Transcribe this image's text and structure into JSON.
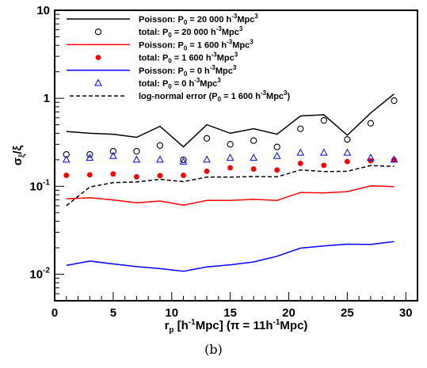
{
  "caption": "(b)",
  "chart_data": {
    "type": "line",
    "xlabel": "r_p [h^-1Mpc] (π = 11h^-1Mpc)",
    "ylabel": "σ_ξ/ξ",
    "xlim": [
      0,
      31
    ],
    "ylim": [
      0.005,
      10
    ],
    "yscale": "log",
    "x_ticks": [
      0,
      5,
      10,
      15,
      20,
      25,
      30
    ],
    "y_ticks": [
      {
        "value": 0.01,
        "base": "10",
        "exp": "-2"
      },
      {
        "value": 0.1,
        "base": "10",
        "exp": "-1"
      },
      {
        "value": 1,
        "base": "1",
        "exp": ""
      },
      {
        "value": 10,
        "base": "10",
        "exp": ""
      }
    ],
    "grid": false,
    "legend_position": "top-left",
    "x": [
      1,
      3,
      5,
      7,
      9,
      11,
      13,
      15,
      17,
      19,
      21,
      23,
      25,
      27,
      29
    ],
    "series": [
      {
        "name": "Poisson: P0 = 20 000 h-3Mpc3",
        "legend": {
          "pre": "Poisson: P",
          "sub": "0",
          "mid": " = 20 000 h",
          "sup": "-3",
          "post": "Mpc",
          "sup2": "3"
        },
        "style": "line",
        "color": "#000000",
        "values": [
          0.42,
          0.4,
          0.39,
          0.36,
          0.48,
          0.28,
          0.5,
          0.4,
          0.45,
          0.39,
          0.63,
          0.65,
          0.38,
          0.68,
          1.12
        ]
      },
      {
        "name": "total: P0 = 20 000 h-3Mpc3",
        "legend": {
          "pre": "total: P",
          "sub": "0",
          "mid": " = 20 000 h",
          "sup": "-3",
          "post": "Mpc",
          "sup2": "3"
        },
        "style": "open-circle",
        "color": "#000000",
        "values": [
          0.23,
          0.23,
          0.25,
          0.25,
          0.29,
          0.2,
          0.35,
          0.3,
          0.33,
          0.28,
          0.45,
          0.56,
          0.34,
          0.52,
          0.94
        ]
      },
      {
        "name": "Poisson: P0 = 1 600 h-3Mpc3",
        "legend": {
          "pre": "Poisson: P",
          "sub": "0",
          "mid": " = 1 600 h",
          "sup": "-3",
          "post": "Mpc",
          "sup2": "3"
        },
        "style": "line",
        "color": "#ff0000",
        "values": [
          0.072,
          0.074,
          0.07,
          0.065,
          0.068,
          0.061,
          0.069,
          0.069,
          0.071,
          0.069,
          0.085,
          0.084,
          0.087,
          0.101,
          0.099
        ]
      },
      {
        "name": "total: P0 = 1 600 h-3Mpc3",
        "legend": {
          "pre": "total: P",
          "sub": "0",
          "mid": " = 1 600 h",
          "sup": "-3",
          "post": "Mpc",
          "sup2": "3"
        },
        "style": "filled-circle",
        "color": "#ff0000",
        "values": [
          0.133,
          0.135,
          0.138,
          0.128,
          0.132,
          0.133,
          0.148,
          0.162,
          0.157,
          0.153,
          0.182,
          0.173,
          0.191,
          0.195,
          0.2
        ]
      },
      {
        "name": "Poisson: P0 = 0 h-3Mpc3",
        "legend": {
          "pre": "Poisson: P",
          "sub": "0",
          "mid": " = 0 h",
          "sup": "-3",
          "post": "Mpc",
          "sup2": "3"
        },
        "style": "line",
        "color": "#0000ff",
        "values": [
          0.0126,
          0.0141,
          0.0131,
          0.0122,
          0.0116,
          0.0108,
          0.0121,
          0.0128,
          0.0138,
          0.016,
          0.0198,
          0.021,
          0.022,
          0.0218,
          0.0235
        ]
      },
      {
        "name": "total: P0 = 0 h-3Mpc3",
        "legend": {
          "pre": "total: P",
          "sub": "0",
          "mid": " = 0 h",
          "sup": "-3",
          "post": "Mpc",
          "sup2": "3"
        },
        "style": "open-triangle",
        "color": "#0000ff",
        "values": [
          0.2,
          0.21,
          0.22,
          0.2,
          0.2,
          0.19,
          0.2,
          0.21,
          0.21,
          0.22,
          0.24,
          0.24,
          0.24,
          0.21,
          0.2
        ]
      },
      {
        "name": "log-normal error (P0 = 1 600 h-3Mpc3)",
        "legend": {
          "pre": "log-normal error (P",
          "sub": "0",
          "mid": " = 1 600 h",
          "sup": "-3",
          "post": "Mpc",
          "sup2": "3",
          "tail": ")"
        },
        "style": "dashed-line",
        "color": "#000000",
        "values": [
          0.06,
          0.098,
          0.11,
          0.112,
          0.12,
          0.113,
          0.127,
          0.127,
          0.129,
          0.128,
          0.153,
          0.147,
          0.148,
          0.172,
          0.168
        ]
      }
    ]
  }
}
